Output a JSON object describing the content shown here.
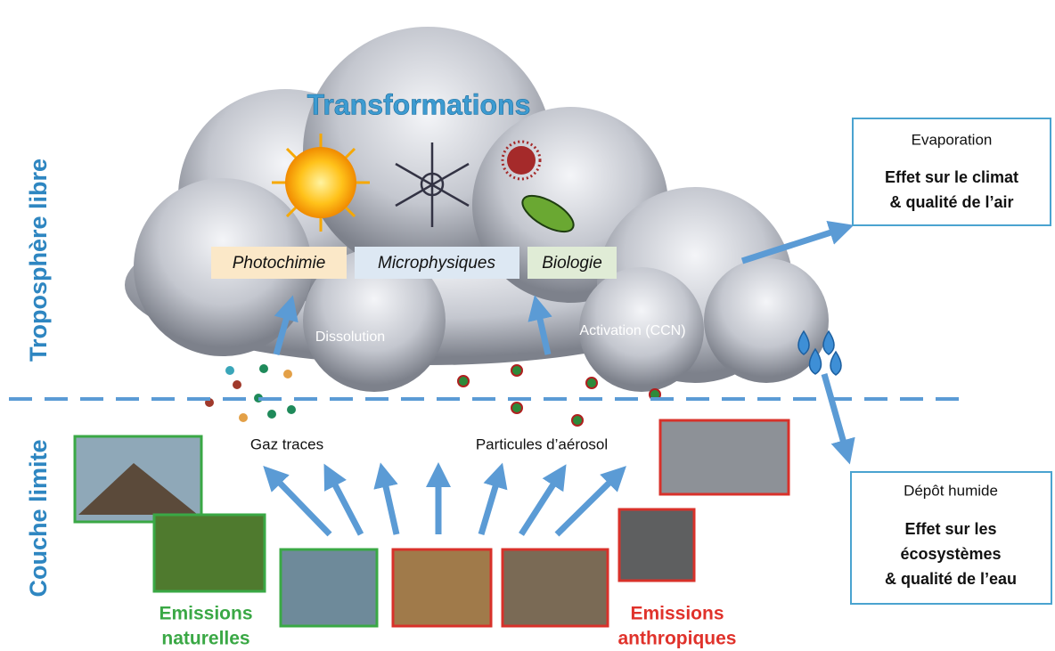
{
  "title": "Transformations",
  "layers": [
    "Troposphère libre",
    "Couche limite"
  ],
  "processes": [
    "Photochimie",
    "Microphysiques",
    "Biologie"
  ],
  "pathways": [
    "Dissolution",
    "Activation (CCN)"
  ],
  "species": [
    "Gaz traces",
    "Particules d’aérosol"
  ],
  "boxes": [
    {
      "heading": "Evaporation",
      "lines": [
        "Effet sur le climat",
        "& qualité de l’air"
      ]
    },
    {
      "heading": "Dépôt humide",
      "lines": [
        "Effet sur les",
        "écosystèmes",
        "& qualité de l’eau"
      ]
    }
  ],
  "emissions": [
    {
      "lines": [
        "Emissions",
        "naturelles"
      ]
    },
    {
      "lines": [
        "Emissions",
        "anthropiques"
      ]
    }
  ]
}
